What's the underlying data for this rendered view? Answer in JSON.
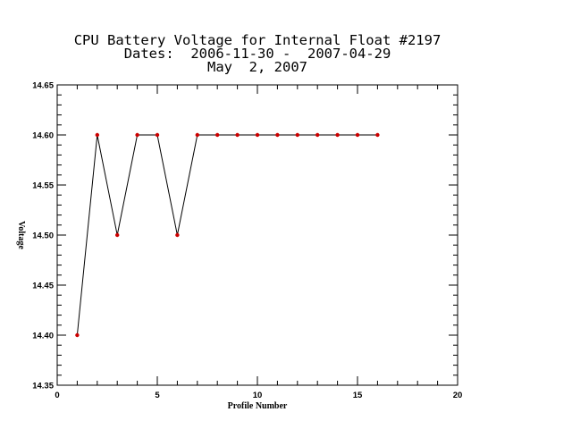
{
  "chart_data": {
    "type": "line",
    "title_lines": [
      "CPU Battery Voltage for Internal Float #2197",
      "Dates:  2006-11-30 -  2007-04-29",
      "May  2, 2007"
    ],
    "xlabel": "Profile Number",
    "ylabel": "Voltage",
    "xlim": [
      0,
      20
    ],
    "ylim": [
      14.35,
      14.65
    ],
    "x_ticks": [
      0,
      5,
      10,
      15,
      20
    ],
    "y_ticks": [
      14.35,
      14.4,
      14.45,
      14.5,
      14.55,
      14.6,
      14.65
    ],
    "x_tick_labels": [
      "0",
      "5",
      "10",
      "15",
      "20"
    ],
    "y_tick_labels": [
      "14.35",
      "14.40",
      "14.45",
      "14.50",
      "14.55",
      "14.60",
      "14.65"
    ],
    "grid": false,
    "line_color": "#000000",
    "marker_color": "#cc0000",
    "series": [
      {
        "x": [
          1,
          2,
          3,
          4,
          5,
          6,
          7,
          8,
          9,
          10,
          11,
          12,
          13,
          14,
          15,
          16
        ],
        "values": [
          14.4,
          14.6,
          14.5,
          14.6,
          14.6,
          14.5,
          14.6,
          14.6,
          14.6,
          14.6,
          14.6,
          14.6,
          14.6,
          14.6,
          14.6,
          14.6
        ]
      }
    ]
  }
}
